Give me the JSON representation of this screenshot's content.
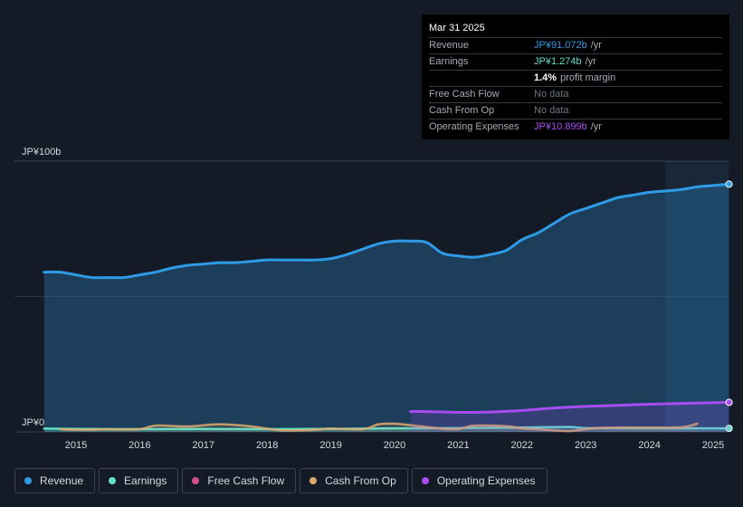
{
  "tooltip": {
    "date": "Mar 31 2025",
    "rows": {
      "revenue": {
        "label": "Revenue",
        "value": "JP¥91.072b",
        "unit": "/yr",
        "color": "#2e9be6"
      },
      "earnings": {
        "label": "Earnings",
        "value": "JP¥1.274b",
        "unit": "/yr",
        "color": "#5fe0c8"
      },
      "margin": {
        "value": "1.4%",
        "text": "profit margin"
      },
      "fcf": {
        "label": "Free Cash Flow",
        "value": "No data"
      },
      "cfo": {
        "label": "Cash From Op",
        "value": "No data"
      },
      "opex": {
        "label": "Operating Expenses",
        "value": "JP¥10.899b",
        "unit": "/yr",
        "color": "#a64cf0"
      }
    }
  },
  "legend": {
    "revenue": {
      "label": "Revenue",
      "color": "#2e9be6"
    },
    "earnings": {
      "label": "Earnings",
      "color": "#5fe0c8"
    },
    "fcf": {
      "label": "Free Cash Flow",
      "color": "#d14e87"
    },
    "cfo": {
      "label": "Cash From Op",
      "color": "#e0a96b"
    },
    "opex": {
      "label": "Operating Expenses",
      "color": "#a64cf0"
    }
  },
  "chart_data": {
    "type": "area",
    "y_unit": "JP¥ billions",
    "ylim": [
      0,
      100
    ],
    "y_tick_labels": [
      "JP¥100b",
      "JP¥0"
    ],
    "x_tick_labels": [
      "2015",
      "2016",
      "2017",
      "2018",
      "2019",
      "2020",
      "2021",
      "2022",
      "2023",
      "2024",
      "2025"
    ],
    "xlim": [
      2014.5,
      2025.25
    ],
    "forecast_from": 2024.25,
    "series": [
      {
        "name": "Revenue",
        "color": "#2e9be6",
        "x": [
          2014.5,
          2014.75,
          2015.0,
          2015.25,
          2015.5,
          2015.75,
          2016.0,
          2016.25,
          2016.5,
          2016.75,
          2017.0,
          2017.25,
          2017.5,
          2017.75,
          2018.0,
          2018.25,
          2018.5,
          2018.75,
          2019.0,
          2019.25,
          2019.5,
          2019.75,
          2020.0,
          2020.25,
          2020.5,
          2020.75,
          2021.0,
          2021.25,
          2021.5,
          2021.75,
          2022.0,
          2022.25,
          2022.5,
          2022.75,
          2023.0,
          2023.25,
          2023.5,
          2023.75,
          2024.0,
          2024.25,
          2024.5,
          2024.75,
          2025.0,
          2025.25
        ],
        "values": [
          59,
          59,
          58,
          57,
          57,
          57,
          58,
          59,
          60.5,
          61.5,
          62,
          62.5,
          62.5,
          63,
          63.5,
          63.5,
          63.5,
          63.5,
          64,
          65.5,
          67.5,
          69.5,
          70.5,
          70.5,
          70,
          66,
          65,
          64.5,
          65.5,
          67,
          71,
          73.5,
          77,
          80.5,
          82.5,
          84.5,
          86.5,
          87.5,
          88.5,
          89,
          89.5,
          90.5,
          91,
          91.5
        ]
      },
      {
        "name": "Earnings",
        "color": "#5fe0c8",
        "x": [
          2014.5,
          2015.0,
          2016.0,
          2017.0,
          2018.0,
          2019.0,
          2020.0,
          2021.0,
          2022.0,
          2022.75,
          2023.0,
          2024.0,
          2025.25
        ],
        "values": [
          1.2,
          1.1,
          1.0,
          1.1,
          1.0,
          1.1,
          1.3,
          1.4,
          1.6,
          1.8,
          1.4,
          1.3,
          1.3
        ]
      },
      {
        "name": "Cash From Op",
        "color": "#e0a96b",
        "x": [
          2014.75,
          2015.0,
          2015.5,
          2016.0,
          2016.25,
          2016.75,
          2017.25,
          2017.75,
          2018.0,
          2018.25,
          2018.75,
          2019.0,
          2019.5,
          2019.75,
          2020.0,
          2020.5,
          2020.75,
          2021.0,
          2021.25,
          2021.75,
          2022.0,
          2022.5,
          2022.75,
          2023.0,
          2023.25,
          2023.75,
          2024.0,
          2024.5,
          2024.75
        ],
        "values": [
          1.0,
          0.8,
          0.9,
          1.0,
          2.3,
          2.0,
          2.8,
          2.0,
          1.2,
          0.5,
          0.8,
          1.2,
          1.0,
          2.8,
          3.0,
          1.8,
          1.2,
          1.0,
          2.3,
          2.1,
          1.3,
          0.6,
          0.3,
          1.0,
          1.5,
          1.6,
          1.6,
          1.7,
          3.0
        ]
      },
      {
        "name": "Operating Expenses",
        "color": "#a64cf0",
        "x": [
          2020.25,
          2020.5,
          2021.0,
          2021.5,
          2022.0,
          2022.5,
          2023.0,
          2023.5,
          2024.0,
          2024.5,
          2025.25
        ],
        "values": [
          7.5,
          7.5,
          7.2,
          7.3,
          7.9,
          8.8,
          9.4,
          9.8,
          10.2,
          10.5,
          10.9
        ]
      }
    ]
  }
}
